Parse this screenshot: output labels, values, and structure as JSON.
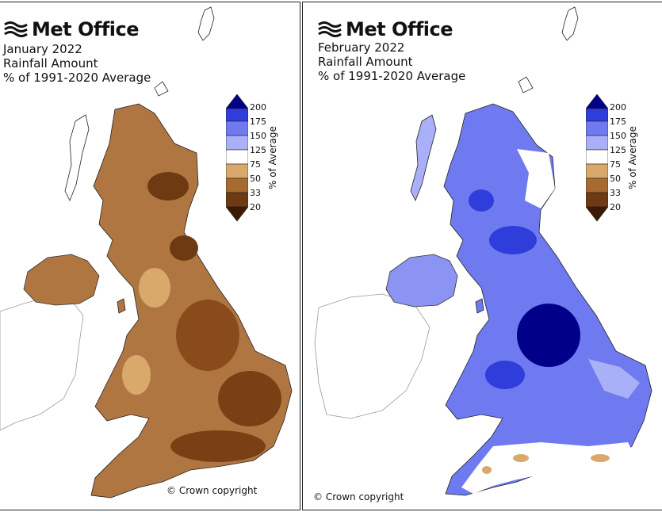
{
  "brand": "Met Office",
  "copyright": "© Crown copyright",
  "legend": {
    "title": "% of Average",
    "ticks": [
      "200",
      "175",
      "150",
      "125",
      "75",
      "50",
      "33",
      "20"
    ],
    "colors": {
      "over_200": "#00008b",
      "175_200": "#2f3ddb",
      "150_175": "#6f7af0",
      "125_150": "#a9b0f7",
      "75_125": "#ffffff",
      "50_75": "#d9a86b",
      "33_50": "#a86a30",
      "20_33": "#6e3a12",
      "under_20": "#3b1a05"
    }
  },
  "maps": [
    {
      "id": "january",
      "title_lines": [
        "January 2022",
        "Rainfall Amount",
        "% of 1991-2020 Average"
      ],
      "main_color": "#b07642",
      "dark_color": "#6e3a12",
      "light_color": "#d9a86b"
    },
    {
      "id": "february",
      "title_lines": [
        "February 2022",
        "Rainfall Amount",
        "% of 1991-2020 Average"
      ],
      "main_color": "#5b67e8",
      "dark_color": "#00008b",
      "light_color": "#a9b0f7"
    }
  ]
}
